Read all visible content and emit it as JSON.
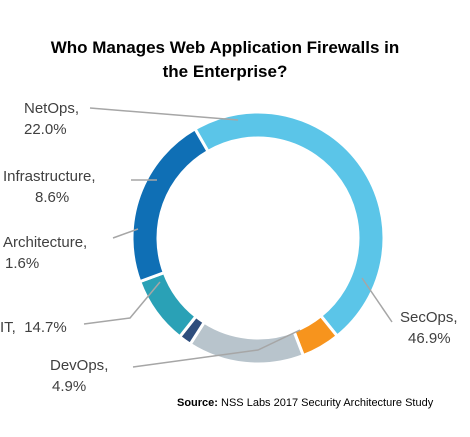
{
  "chart_data": {
    "type": "pie",
    "donut": true,
    "title_lines": [
      "Who Manages Web Application Firewalls in",
      "the Enterprise?"
    ],
    "slices": [
      {
        "name": "SecOps",
        "value": 46.9,
        "label": "46.9%",
        "color": "#5bc5e8"
      },
      {
        "name": "DevOps",
        "value": 4.9,
        "label": "4.9%",
        "color": "#f7941d"
      },
      {
        "name": "IT",
        "value": 14.7,
        "label": "14.7%",
        "color": "#b8c4cc"
      },
      {
        "name": "Architecture",
        "value": 1.6,
        "label": "1.6%",
        "color": "#2e4e7d"
      },
      {
        "name": "Infrastructure",
        "value": 8.6,
        "label": "8.6%",
        "color": "#2aa1b6"
      },
      {
        "name": "NetOps",
        "value": 22.0,
        "label": "22.0%",
        "color": "#0f6fb5"
      }
    ],
    "source_label": "Source:",
    "source_text": "NSS Labs 2017 Security Architecture Study"
  }
}
